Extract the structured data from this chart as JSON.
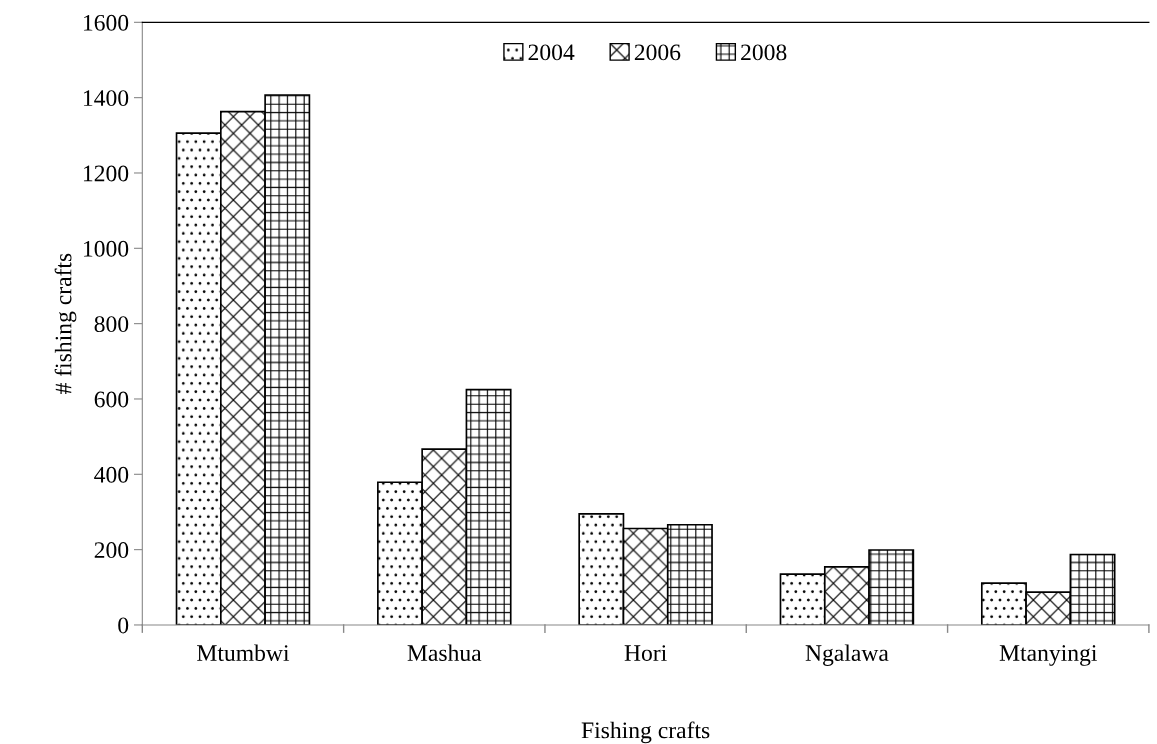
{
  "chart_data": {
    "type": "bar",
    "xlabel": "Fishing crafts",
    "ylabel": "# fishing crafts",
    "categories": [
      "Mtumbwi",
      "Mashua",
      "Hori",
      "Ngalawa",
      "Mtanyingi"
    ],
    "series": [
      {
        "name": "2004",
        "color": "#000000",
        "values": [
          1306,
          379,
          295,
          135,
          111
        ]
      },
      {
        "name": "2006",
        "color": "#000000",
        "values": [
          1363,
          467,
          256,
          154,
          87
        ]
      },
      {
        "name": "2008",
        "color": "#000000",
        "values": [
          1407,
          625,
          266,
          199,
          187
        ]
      }
    ],
    "ylim": [
      0,
      1600
    ],
    "yticks": [
      0,
      200,
      400,
      600,
      800,
      1000,
      1200,
      1400,
      1600
    ],
    "grid": false,
    "legend": "top"
  }
}
